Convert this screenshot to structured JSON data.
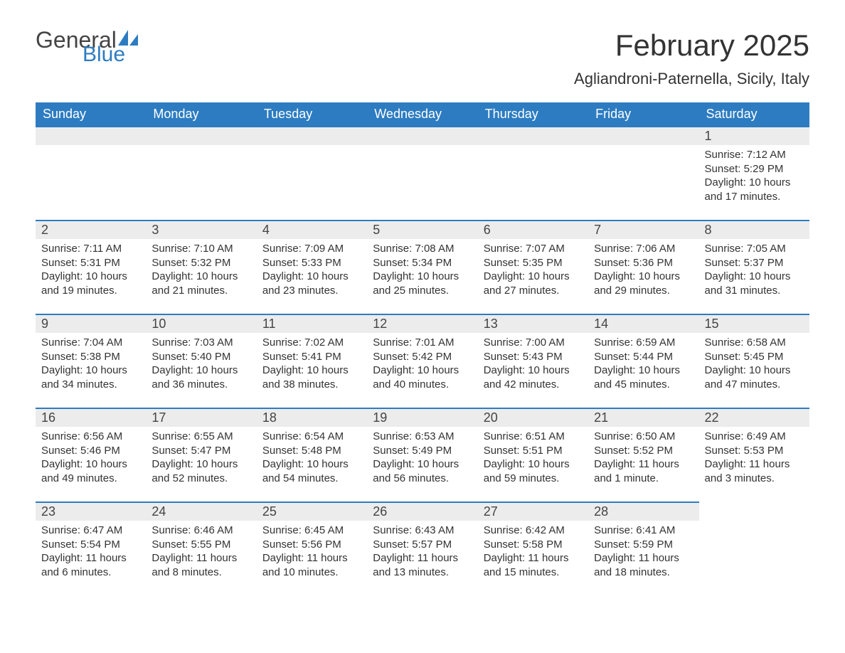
{
  "brand": {
    "word1": "General",
    "word2": "Blue",
    "word1_color": "#444444",
    "word2_color": "#2d7cc1",
    "sail_color": "#2d7cc1"
  },
  "title": "February 2025",
  "location": "Agliandroni-Paternella, Sicily, Italy",
  "colors": {
    "header_bg": "#2d7cc1",
    "header_text": "#ffffff",
    "daynum_bg": "#ececec",
    "row_top_border": "#2d7cc1",
    "body_text": "#333333",
    "page_bg": "#ffffff"
  },
  "fonts": {
    "title_size_pt": 32,
    "location_size_pt": 17,
    "dayheader_size_pt": 14,
    "daynum_size_pt": 14,
    "body_size_pt": 11
  },
  "day_headers": [
    "Sunday",
    "Monday",
    "Tuesday",
    "Wednesday",
    "Thursday",
    "Friday",
    "Saturday"
  ],
  "weeks": [
    [
      {
        "blank": true
      },
      {
        "blank": true
      },
      {
        "blank": true
      },
      {
        "blank": true
      },
      {
        "blank": true
      },
      {
        "blank": true
      },
      {
        "n": "1",
        "sunrise": "Sunrise: 7:12 AM",
        "sunset": "Sunset: 5:29 PM",
        "daylight": "Daylight: 10 hours and 17 minutes."
      }
    ],
    [
      {
        "n": "2",
        "sunrise": "Sunrise: 7:11 AM",
        "sunset": "Sunset: 5:31 PM",
        "daylight": "Daylight: 10 hours and 19 minutes."
      },
      {
        "n": "3",
        "sunrise": "Sunrise: 7:10 AM",
        "sunset": "Sunset: 5:32 PM",
        "daylight": "Daylight: 10 hours and 21 minutes."
      },
      {
        "n": "4",
        "sunrise": "Sunrise: 7:09 AM",
        "sunset": "Sunset: 5:33 PM",
        "daylight": "Daylight: 10 hours and 23 minutes."
      },
      {
        "n": "5",
        "sunrise": "Sunrise: 7:08 AM",
        "sunset": "Sunset: 5:34 PM",
        "daylight": "Daylight: 10 hours and 25 minutes."
      },
      {
        "n": "6",
        "sunrise": "Sunrise: 7:07 AM",
        "sunset": "Sunset: 5:35 PM",
        "daylight": "Daylight: 10 hours and 27 minutes."
      },
      {
        "n": "7",
        "sunrise": "Sunrise: 7:06 AM",
        "sunset": "Sunset: 5:36 PM",
        "daylight": "Daylight: 10 hours and 29 minutes."
      },
      {
        "n": "8",
        "sunrise": "Sunrise: 7:05 AM",
        "sunset": "Sunset: 5:37 PM",
        "daylight": "Daylight: 10 hours and 31 minutes."
      }
    ],
    [
      {
        "n": "9",
        "sunrise": "Sunrise: 7:04 AM",
        "sunset": "Sunset: 5:38 PM",
        "daylight": "Daylight: 10 hours and 34 minutes."
      },
      {
        "n": "10",
        "sunrise": "Sunrise: 7:03 AM",
        "sunset": "Sunset: 5:40 PM",
        "daylight": "Daylight: 10 hours and 36 minutes."
      },
      {
        "n": "11",
        "sunrise": "Sunrise: 7:02 AM",
        "sunset": "Sunset: 5:41 PM",
        "daylight": "Daylight: 10 hours and 38 minutes."
      },
      {
        "n": "12",
        "sunrise": "Sunrise: 7:01 AM",
        "sunset": "Sunset: 5:42 PM",
        "daylight": "Daylight: 10 hours and 40 minutes."
      },
      {
        "n": "13",
        "sunrise": "Sunrise: 7:00 AM",
        "sunset": "Sunset: 5:43 PM",
        "daylight": "Daylight: 10 hours and 42 minutes."
      },
      {
        "n": "14",
        "sunrise": "Sunrise: 6:59 AM",
        "sunset": "Sunset: 5:44 PM",
        "daylight": "Daylight: 10 hours and 45 minutes."
      },
      {
        "n": "15",
        "sunrise": "Sunrise: 6:58 AM",
        "sunset": "Sunset: 5:45 PM",
        "daylight": "Daylight: 10 hours and 47 minutes."
      }
    ],
    [
      {
        "n": "16",
        "sunrise": "Sunrise: 6:56 AM",
        "sunset": "Sunset: 5:46 PM",
        "daylight": "Daylight: 10 hours and 49 minutes."
      },
      {
        "n": "17",
        "sunrise": "Sunrise: 6:55 AM",
        "sunset": "Sunset: 5:47 PM",
        "daylight": "Daylight: 10 hours and 52 minutes."
      },
      {
        "n": "18",
        "sunrise": "Sunrise: 6:54 AM",
        "sunset": "Sunset: 5:48 PM",
        "daylight": "Daylight: 10 hours and 54 minutes."
      },
      {
        "n": "19",
        "sunrise": "Sunrise: 6:53 AM",
        "sunset": "Sunset: 5:49 PM",
        "daylight": "Daylight: 10 hours and 56 minutes."
      },
      {
        "n": "20",
        "sunrise": "Sunrise: 6:51 AM",
        "sunset": "Sunset: 5:51 PM",
        "daylight": "Daylight: 10 hours and 59 minutes."
      },
      {
        "n": "21",
        "sunrise": "Sunrise: 6:50 AM",
        "sunset": "Sunset: 5:52 PM",
        "daylight": "Daylight: 11 hours and 1 minute."
      },
      {
        "n": "22",
        "sunrise": "Sunrise: 6:49 AM",
        "sunset": "Sunset: 5:53 PM",
        "daylight": "Daylight: 11 hours and 3 minutes."
      }
    ],
    [
      {
        "n": "23",
        "sunrise": "Sunrise: 6:47 AM",
        "sunset": "Sunset: 5:54 PM",
        "daylight": "Daylight: 11 hours and 6 minutes."
      },
      {
        "n": "24",
        "sunrise": "Sunrise: 6:46 AM",
        "sunset": "Sunset: 5:55 PM",
        "daylight": "Daylight: 11 hours and 8 minutes."
      },
      {
        "n": "25",
        "sunrise": "Sunrise: 6:45 AM",
        "sunset": "Sunset: 5:56 PM",
        "daylight": "Daylight: 11 hours and 10 minutes."
      },
      {
        "n": "26",
        "sunrise": "Sunrise: 6:43 AM",
        "sunset": "Sunset: 5:57 PM",
        "daylight": "Daylight: 11 hours and 13 minutes."
      },
      {
        "n": "27",
        "sunrise": "Sunrise: 6:42 AM",
        "sunset": "Sunset: 5:58 PM",
        "daylight": "Daylight: 11 hours and 15 minutes."
      },
      {
        "n": "28",
        "sunrise": "Sunrise: 6:41 AM",
        "sunset": "Sunset: 5:59 PM",
        "daylight": "Daylight: 11 hours and 18 minutes."
      },
      {
        "trailing_blank": true
      }
    ]
  ]
}
